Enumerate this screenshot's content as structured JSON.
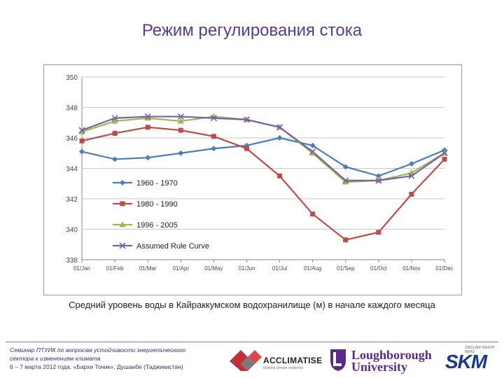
{
  "title": "Режим регулирования стока",
  "caption": "Средний уровень воды в Кайраккумском водохранилище (м) в начале каждого месяца",
  "footer": {
    "seminar_line1": "Семинар ПТУИК по вопросам устойчивости энергетического",
    "seminar_line2": "сектора к изменениям климата",
    "seminar_line3": "6 – 7 марта 2012 года, «Бархи Точик», Душанбе (Таджикистан)",
    "acclimatise": "ACCLIMATISE",
    "acclimatise_sub": "building climate resilience",
    "loughborough_1": "Loughborough",
    "loughborough_2": "University",
    "skm_top": "SINCLAIR KNIGHT MERZ",
    "skm": "SKM"
  },
  "colors": {
    "title": "#5a3a8c",
    "series_1960": "#4a7ebb",
    "series_1980": "#be4b48",
    "series_1996": "#98b954",
    "series_rule": "#7d60a0"
  },
  "chart_data": {
    "type": "line",
    "title": "",
    "xlabel": "",
    "ylabel": "",
    "ylim": [
      338,
      350
    ],
    "yticks": [
      338,
      340,
      342,
      344,
      346,
      348,
      350
    ],
    "grid": "horizontal",
    "legend_position": "bottom-left",
    "categories": [
      "01/Jan",
      "01/Feb",
      "01/Mar",
      "01/Apr",
      "01/May",
      "01/Jun",
      "01/Jul",
      "01/Aug",
      "01/Sep",
      "01/Oct",
      "01/Nov",
      "01/Dec"
    ],
    "series": [
      {
        "name": "1960 - 1970",
        "color": "#4a7ebb",
        "marker": "diamond",
        "values": [
          345.1,
          344.6,
          344.7,
          345.0,
          345.3,
          345.5,
          346.0,
          345.5,
          344.1,
          343.5,
          344.3,
          345.2
        ]
      },
      {
        "name": "1980 - 1990",
        "color": "#be4b48",
        "marker": "square",
        "values": [
          345.8,
          346.3,
          346.7,
          346.5,
          346.1,
          345.3,
          343.5,
          341.0,
          339.3,
          339.8,
          342.3,
          344.6
        ]
      },
      {
        "name": "1996 - 2005",
        "color": "#98b954",
        "marker": "triangle",
        "values": [
          346.4,
          347.1,
          347.3,
          347.1,
          347.4,
          347.2,
          346.7,
          345.0,
          343.1,
          343.2,
          343.7,
          345.0
        ]
      },
      {
        "name": "Assumed Rule Curve",
        "color": "#7d60a0",
        "marker": "x",
        "values": [
          346.5,
          347.3,
          347.4,
          347.4,
          347.3,
          347.2,
          346.7,
          345.1,
          343.2,
          343.2,
          343.5,
          345.0
        ]
      }
    ]
  }
}
